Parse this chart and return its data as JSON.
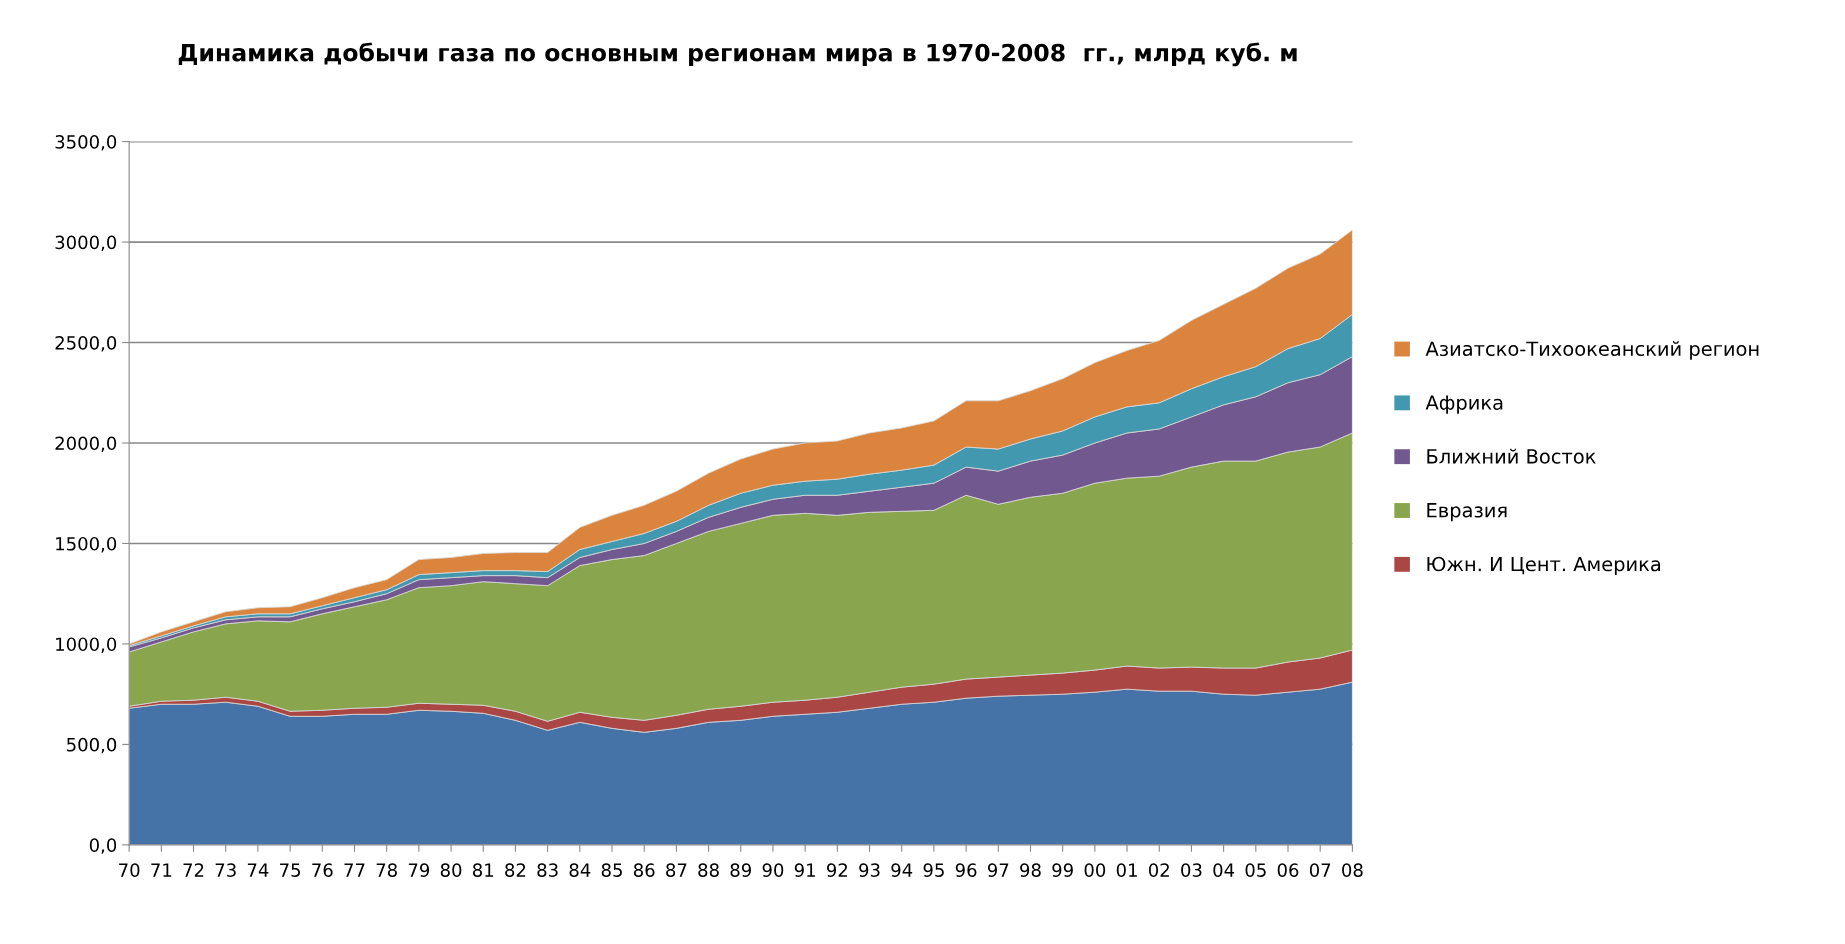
{
  "chart_data": {
    "type": "area",
    "stacked": true,
    "title": "Динамика добычи газа по основным регионам мира в 1970-2008  гг., млрд куб. м",
    "categories": [
      "70",
      "71",
      "72",
      "73",
      "74",
      "75",
      "76",
      "77",
      "78",
      "79",
      "80",
      "81",
      "82",
      "83",
      "84",
      "85",
      "86",
      "87",
      "88",
      "89",
      "90",
      "91",
      "92",
      "93",
      "94",
      "95",
      "96",
      "97",
      "98",
      "99",
      "00",
      "01",
      "02",
      "03",
      "04",
      "05",
      "06",
      "07",
      "08"
    ],
    "series": [
      {
        "color": "#4572a7",
        "values": [
          680,
          700,
          700,
          710,
          690,
          640,
          640,
          650,
          650,
          670,
          665,
          655,
          620,
          570,
          610,
          580,
          560,
          580,
          610,
          620,
          640,
          650,
          660,
          680,
          700,
          710,
          730,
          740,
          745,
          750,
          760,
          775,
          765,
          765,
          750,
          745,
          760,
          775,
          810
        ]
      },
      {
        "name": "Южн. И Цент. Америка",
        "color": "#aa4643",
        "values": [
          10,
          15,
          20,
          25,
          25,
          25,
          30,
          30,
          35,
          35,
          35,
          40,
          45,
          45,
          50,
          55,
          60,
          65,
          65,
          70,
          70,
          70,
          75,
          80,
          85,
          90,
          95,
          95,
          100,
          105,
          110,
          115,
          115,
          120,
          130,
          135,
          150,
          155,
          160
        ]
      },
      {
        "name": "Евразия",
        "color": "#89a54e",
        "values": [
          270,
          295,
          340,
          365,
          400,
          445,
          480,
          505,
          535,
          575,
          590,
          615,
          635,
          675,
          730,
          785,
          820,
          855,
          885,
          910,
          930,
          930,
          905,
          895,
          875,
          865,
          915,
          860,
          885,
          895,
          930,
          935,
          955,
          995,
          1030,
          1030,
          1045,
          1050,
          1080
        ]
      },
      {
        "name": "Ближний Восток",
        "color": "#71588f",
        "values": [
          25,
          20,
          20,
          20,
          20,
          25,
          25,
          25,
          30,
          40,
          40,
          30,
          40,
          40,
          40,
          50,
          60,
          60,
          70,
          80,
          80,
          90,
          100,
          105,
          120,
          135,
          140,
          165,
          180,
          190,
          200,
          225,
          235,
          250,
          280,
          320,
          345,
          360,
          380
        ]
      },
      {
        "name": "Африка",
        "color": "#4198af",
        "values": [
          7,
          10,
          10,
          15,
          15,
          15,
          15,
          20,
          20,
          25,
          25,
          25,
          25,
          30,
          40,
          40,
          50,
          50,
          60,
          70,
          70,
          70,
          80,
          85,
          85,
          90,
          100,
          110,
          110,
          120,
          130,
          130,
          130,
          140,
          140,
          150,
          170,
          180,
          210
        ]
      },
      {
        "name": "Азиатско-Тихоокеанский регион",
        "color": "#db843d",
        "values": [
          8,
          20,
          20,
          25,
          30,
          35,
          40,
          50,
          50,
          75,
          75,
          85,
          90,
          95,
          110,
          130,
          140,
          150,
          160,
          170,
          180,
          190,
          190,
          205,
          210,
          220,
          230,
          240,
          240,
          260,
          270,
          280,
          310,
          340,
          360,
          390,
          400,
          420,
          420
        ]
      }
    ],
    "ylim": [
      0,
      3500
    ],
    "yticks": [
      {
        "value": 0,
        "label": "0,0"
      },
      {
        "value": 500,
        "label": "500,0"
      },
      {
        "value": 1000,
        "label": "1000,0"
      },
      {
        "value": 1500,
        "label": "1500,0"
      },
      {
        "value": 2000,
        "label": "2000,0"
      },
      {
        "value": 2500,
        "label": "2500,0"
      },
      {
        "value": 3000,
        "label": "3000,0"
      },
      {
        "value": 3500,
        "label": "3500,0"
      }
    ],
    "grid": "y",
    "legend": "right"
  }
}
